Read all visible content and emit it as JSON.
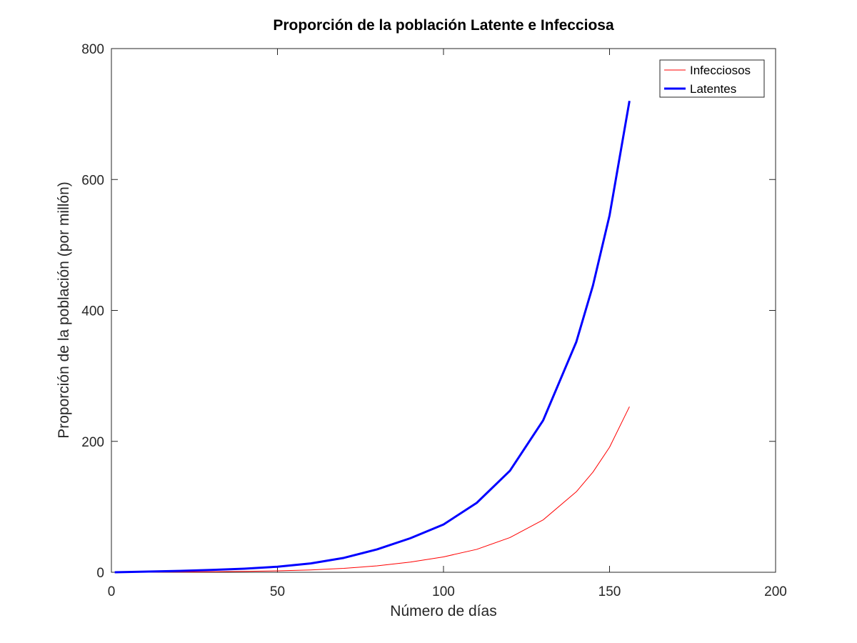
{
  "chart_data": {
    "type": "line",
    "title": "Proporción de la población Latente e Infecciosa",
    "xlabel": "Número de días",
    "ylabel": "Proporción de la población (por millón)",
    "xlim": [
      0,
      200
    ],
    "ylim": [
      0,
      800
    ],
    "xticks": [
      0,
      50,
      100,
      150,
      200
    ],
    "yticks": [
      0,
      200,
      400,
      600,
      800
    ],
    "grid": false,
    "legend_position": "top-right",
    "x": [
      1,
      10,
      20,
      30,
      40,
      50,
      60,
      70,
      80,
      90,
      100,
      110,
      120,
      130,
      140,
      145,
      150,
      156
    ],
    "series": [
      {
        "name": "Infecciosos",
        "color": "#ff0000",
        "line_width": "thin",
        "values": [
          0,
          0.2,
          0.4,
          0.8,
          1.4,
          2.2,
          3.6,
          6,
          9.8,
          15.5,
          23.5,
          35,
          53,
          80,
          123,
          153,
          191,
          253
        ]
      },
      {
        "name": "Latentes",
        "color": "#0000ff",
        "line_width": "thick",
        "values": [
          0,
          1,
          2,
          3.5,
          5.5,
          8.5,
          13.5,
          22,
          35,
          52,
          73,
          106,
          155,
          232,
          352,
          438,
          545,
          720
        ]
      }
    ]
  }
}
